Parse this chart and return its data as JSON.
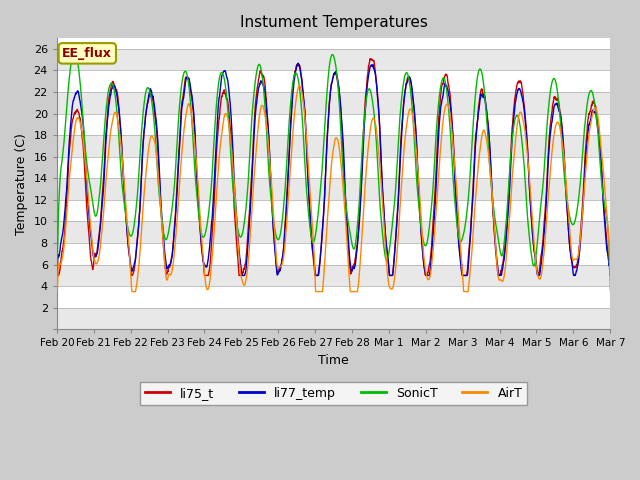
{
  "title": "Instument Temperatures",
  "xlabel": "Time",
  "ylabel": "Temperature (C)",
  "ylim": [
    0,
    27
  ],
  "yticks": [
    0,
    2,
    4,
    6,
    8,
    10,
    12,
    14,
    16,
    18,
    20,
    22,
    24,
    26
  ],
  "xtick_labels": [
    "Feb 20",
    "Feb 21",
    "Feb 22",
    "Feb 23",
    "Feb 24",
    "Feb 25",
    "Feb 26",
    "Feb 27",
    "Feb 28",
    "Mar 1",
    "Mar 2",
    "Mar 3",
    "Mar 4",
    "Mar 5",
    "Mar 6",
    "Mar 7"
  ],
  "annotation_text": "EE_flux",
  "annotation_color": "#8B0000",
  "annotation_bg": "#FFFFC0",
  "annotation_border": "#999900",
  "colors": {
    "li75_t": "#CC0000",
    "li77_temp": "#0000CC",
    "SonicT": "#00BB00",
    "AirT": "#FF8800"
  },
  "legend_labels": [
    "li75_t",
    "li77_temp",
    "SonicT",
    "AirT"
  ],
  "bg_color": "#CCCCCC",
  "plot_bg": "#FFFFFF",
  "band_color_light": "#E8E8E8",
  "band_color_dark": "#D0D0D0",
  "n_points": 2160,
  "days": 15.0,
  "figsize": [
    6.4,
    4.8
  ],
  "dpi": 100
}
